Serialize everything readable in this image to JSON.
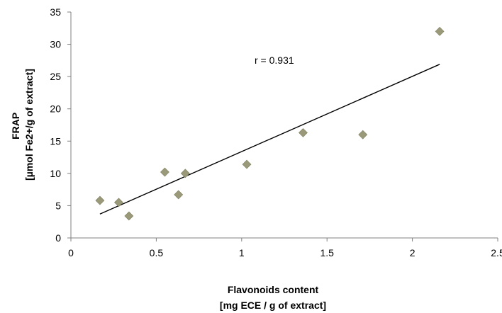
{
  "chart_data": {
    "type": "scatter",
    "title": "",
    "xlabel_lines": [
      "Flavonoids content",
      "[mg ECE / g of extract]"
    ],
    "ylabel_lines": [
      "FRAP",
      "[µmol Fe2+/g of extract]"
    ],
    "xlim": [
      0,
      2.5
    ],
    "ylim": [
      0,
      35
    ],
    "xticks": [
      0,
      0.5,
      1,
      1.5,
      2,
      2.5
    ],
    "xtick_labels": [
      "0",
      "0.5",
      "1",
      "1.5",
      "2",
      "2.5"
    ],
    "yticks": [
      0,
      5,
      10,
      15,
      20,
      25,
      30,
      35
    ],
    "ytick_labels": [
      "0",
      "5",
      "10",
      "15",
      "20",
      "25",
      "30",
      "35"
    ],
    "grid": false,
    "marker": "diamond",
    "marker_color": "#9a9a7a",
    "line_color": "#000000",
    "points": [
      {
        "x": 0.17,
        "y": 5.8
      },
      {
        "x": 0.28,
        "y": 5.5
      },
      {
        "x": 0.34,
        "y": 3.4
      },
      {
        "x": 0.55,
        "y": 10.2
      },
      {
        "x": 0.63,
        "y": 6.7
      },
      {
        "x": 0.67,
        "y": 10.0
      },
      {
        "x": 1.03,
        "y": 11.4
      },
      {
        "x": 1.36,
        "y": 16.3
      },
      {
        "x": 1.71,
        "y": 16.0
      },
      {
        "x": 2.16,
        "y": 32.0
      }
    ],
    "trendline": {
      "type": "linear",
      "x": [
        0.17,
        2.16
      ],
      "y": [
        3.7,
        26.9
      ]
    },
    "annotation": "r = 0.931"
  }
}
